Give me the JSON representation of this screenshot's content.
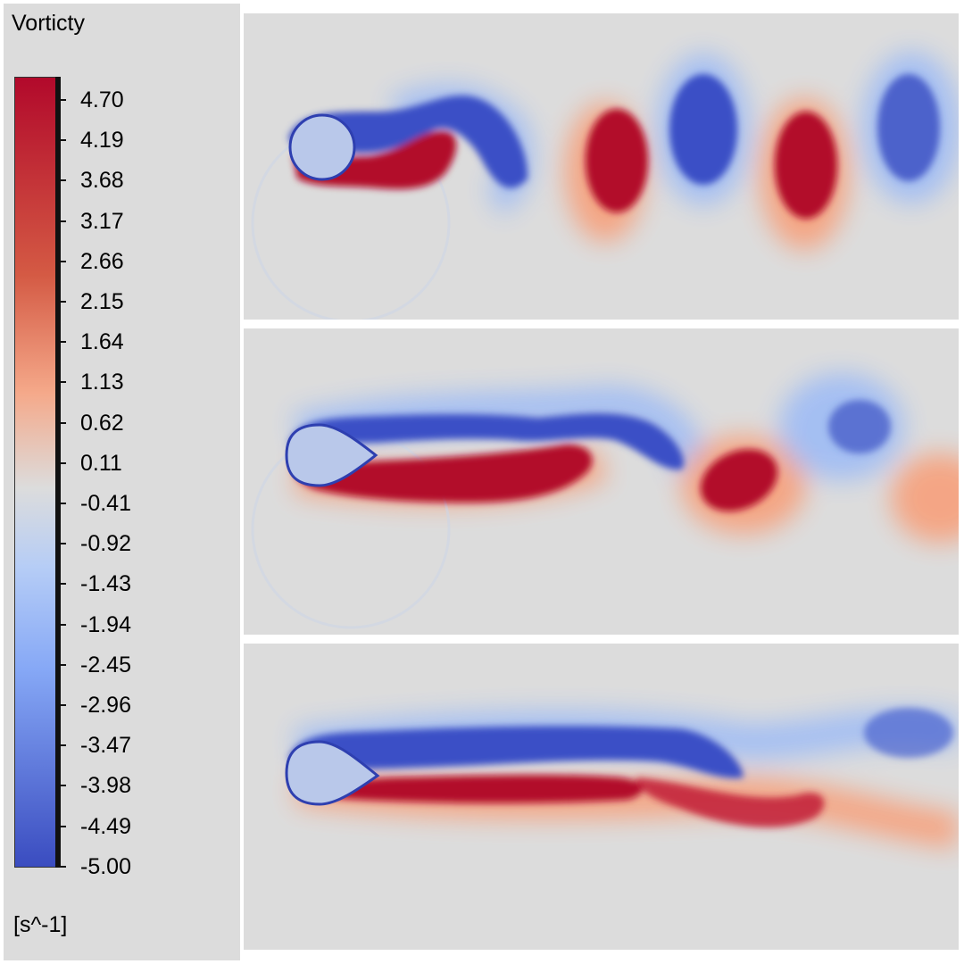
{
  "legend": {
    "title": "Vorticty",
    "unit": "[s^-1]",
    "max": 4.7,
    "min": -5.0,
    "colors": {
      "high": "#b2092b",
      "mid": "#dcdcdc",
      "low": "#3a4cc0"
    },
    "ticks": [
      "4.70",
      "4.19",
      "3.68",
      "3.17",
      "2.66",
      "2.15",
      "1.64",
      "1.13",
      "0.62",
      "0.11",
      "-0.41",
      "-0.92",
      "-1.43",
      "-1.94",
      "-2.45",
      "-2.96",
      "-3.47",
      "-3.98",
      "-4.49",
      "-5.00"
    ]
  },
  "panels": [
    {
      "name": "vorticity-panel-1",
      "shape": "circle"
    },
    {
      "name": "vorticity-panel-2",
      "shape": "teardrop-short"
    },
    {
      "name": "vorticity-panel-3",
      "shape": "teardrop-long"
    }
  ]
}
